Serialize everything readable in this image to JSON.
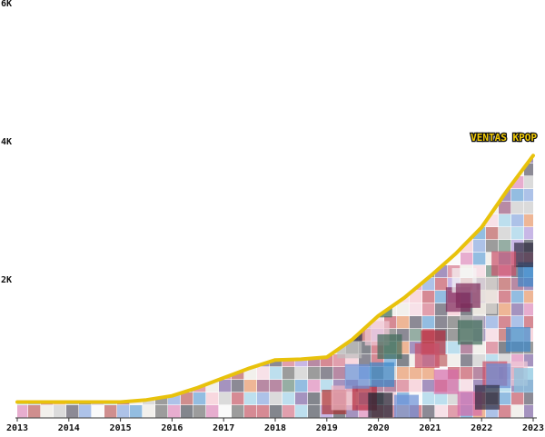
{
  "chart_data": {
    "type": "area",
    "title": "",
    "xlabel": "",
    "ylabel": "",
    "x": [
      2013,
      2014,
      2015,
      2016,
      2017,
      2018,
      2019,
      2020,
      2021,
      2022,
      2023
    ],
    "xlim": [
      2013,
      2023
    ],
    "ylim": [
      0,
      6000
    ],
    "y_ticks": [
      {
        "value": 6000,
        "label": "6K"
      },
      {
        "value": 4000,
        "label": "4K"
      },
      {
        "value": 2000,
        "label": "2K"
      }
    ],
    "x_tick_labels": [
      "2013",
      "2014",
      "2015",
      "2016",
      "2017",
      "2018",
      "2019",
      "2020",
      "2021",
      "2022",
      "2023"
    ],
    "series": [
      {
        "name": "VENTAS KPOP",
        "points": [
          [
            2013,
            230
          ],
          [
            2014,
            230
          ],
          [
            2015,
            230
          ],
          [
            2015.5,
            260
          ],
          [
            2016,
            320
          ],
          [
            2016.5,
            440
          ],
          [
            2017,
            580
          ],
          [
            2017.5,
            720
          ],
          [
            2018,
            840
          ],
          [
            2018.5,
            850
          ],
          [
            2019,
            880
          ],
          [
            2019.5,
            1140
          ],
          [
            2020,
            1480
          ],
          [
            2020.5,
            1740
          ],
          [
            2021,
            2050
          ],
          [
            2021.5,
            2380
          ],
          [
            2022,
            2760
          ],
          [
            2022.5,
            3300
          ],
          [
            2023,
            3800
          ]
        ],
        "color": "#e8c20c"
      }
    ],
    "fill": "mosaic of album cover thumbnails under the line",
    "grid": false,
    "legend": "none; series name drawn at end of line"
  }
}
